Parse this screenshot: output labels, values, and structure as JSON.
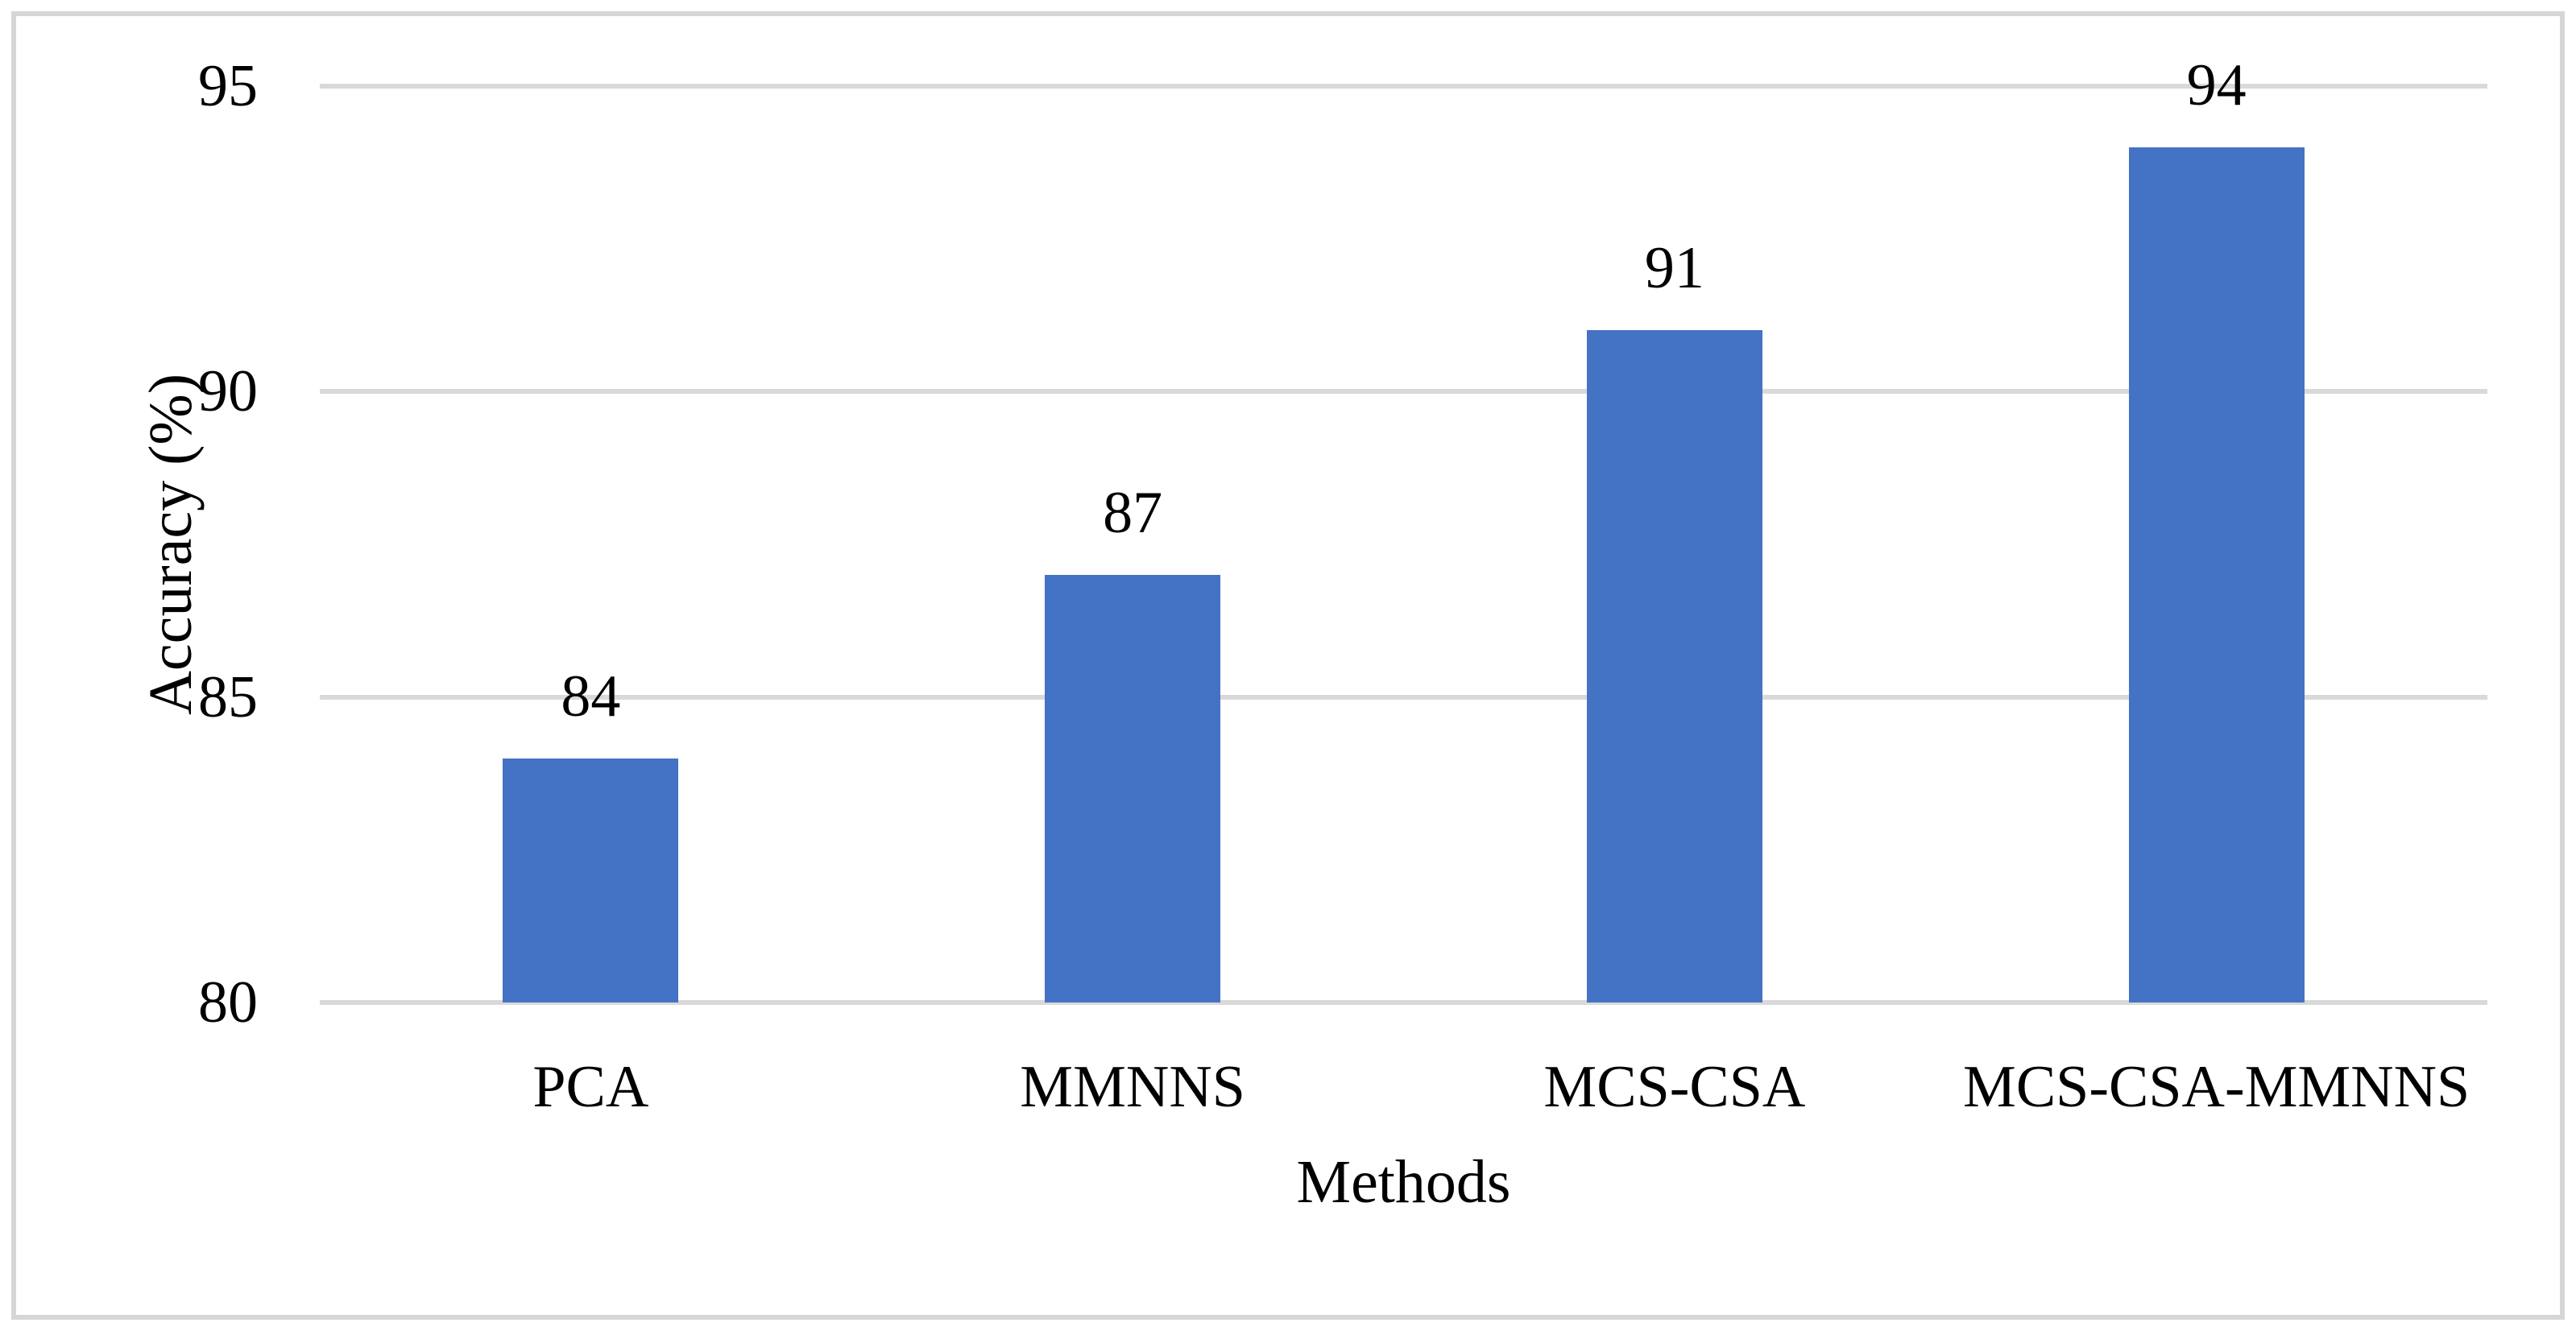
{
  "figure": {
    "background_color": "#ffffff",
    "border_color": "#d6d6d6"
  },
  "chart_data": {
    "type": "bar",
    "title": "",
    "categories": [
      "PCA",
      "MMNNS",
      "MCS-CSA",
      "MCS-CSA-MMNNS"
    ],
    "values": [
      84,
      87,
      91,
      94
    ],
    "data_labels": [
      "84",
      "87",
      "91",
      "94"
    ],
    "xlabel": "Methods",
    "ylabel": "Accuracy (%)",
    "ylim": [
      80,
      95
    ],
    "yticks": [
      95,
      90,
      85,
      80
    ],
    "ytick_labels": [
      "95",
      "90",
      "85",
      "80"
    ],
    "grid": "horizontal-only",
    "legend_position": "none",
    "bar_color": "#4472c4",
    "gridline_color": "#d9d9d9",
    "text_color": "#000000"
  }
}
